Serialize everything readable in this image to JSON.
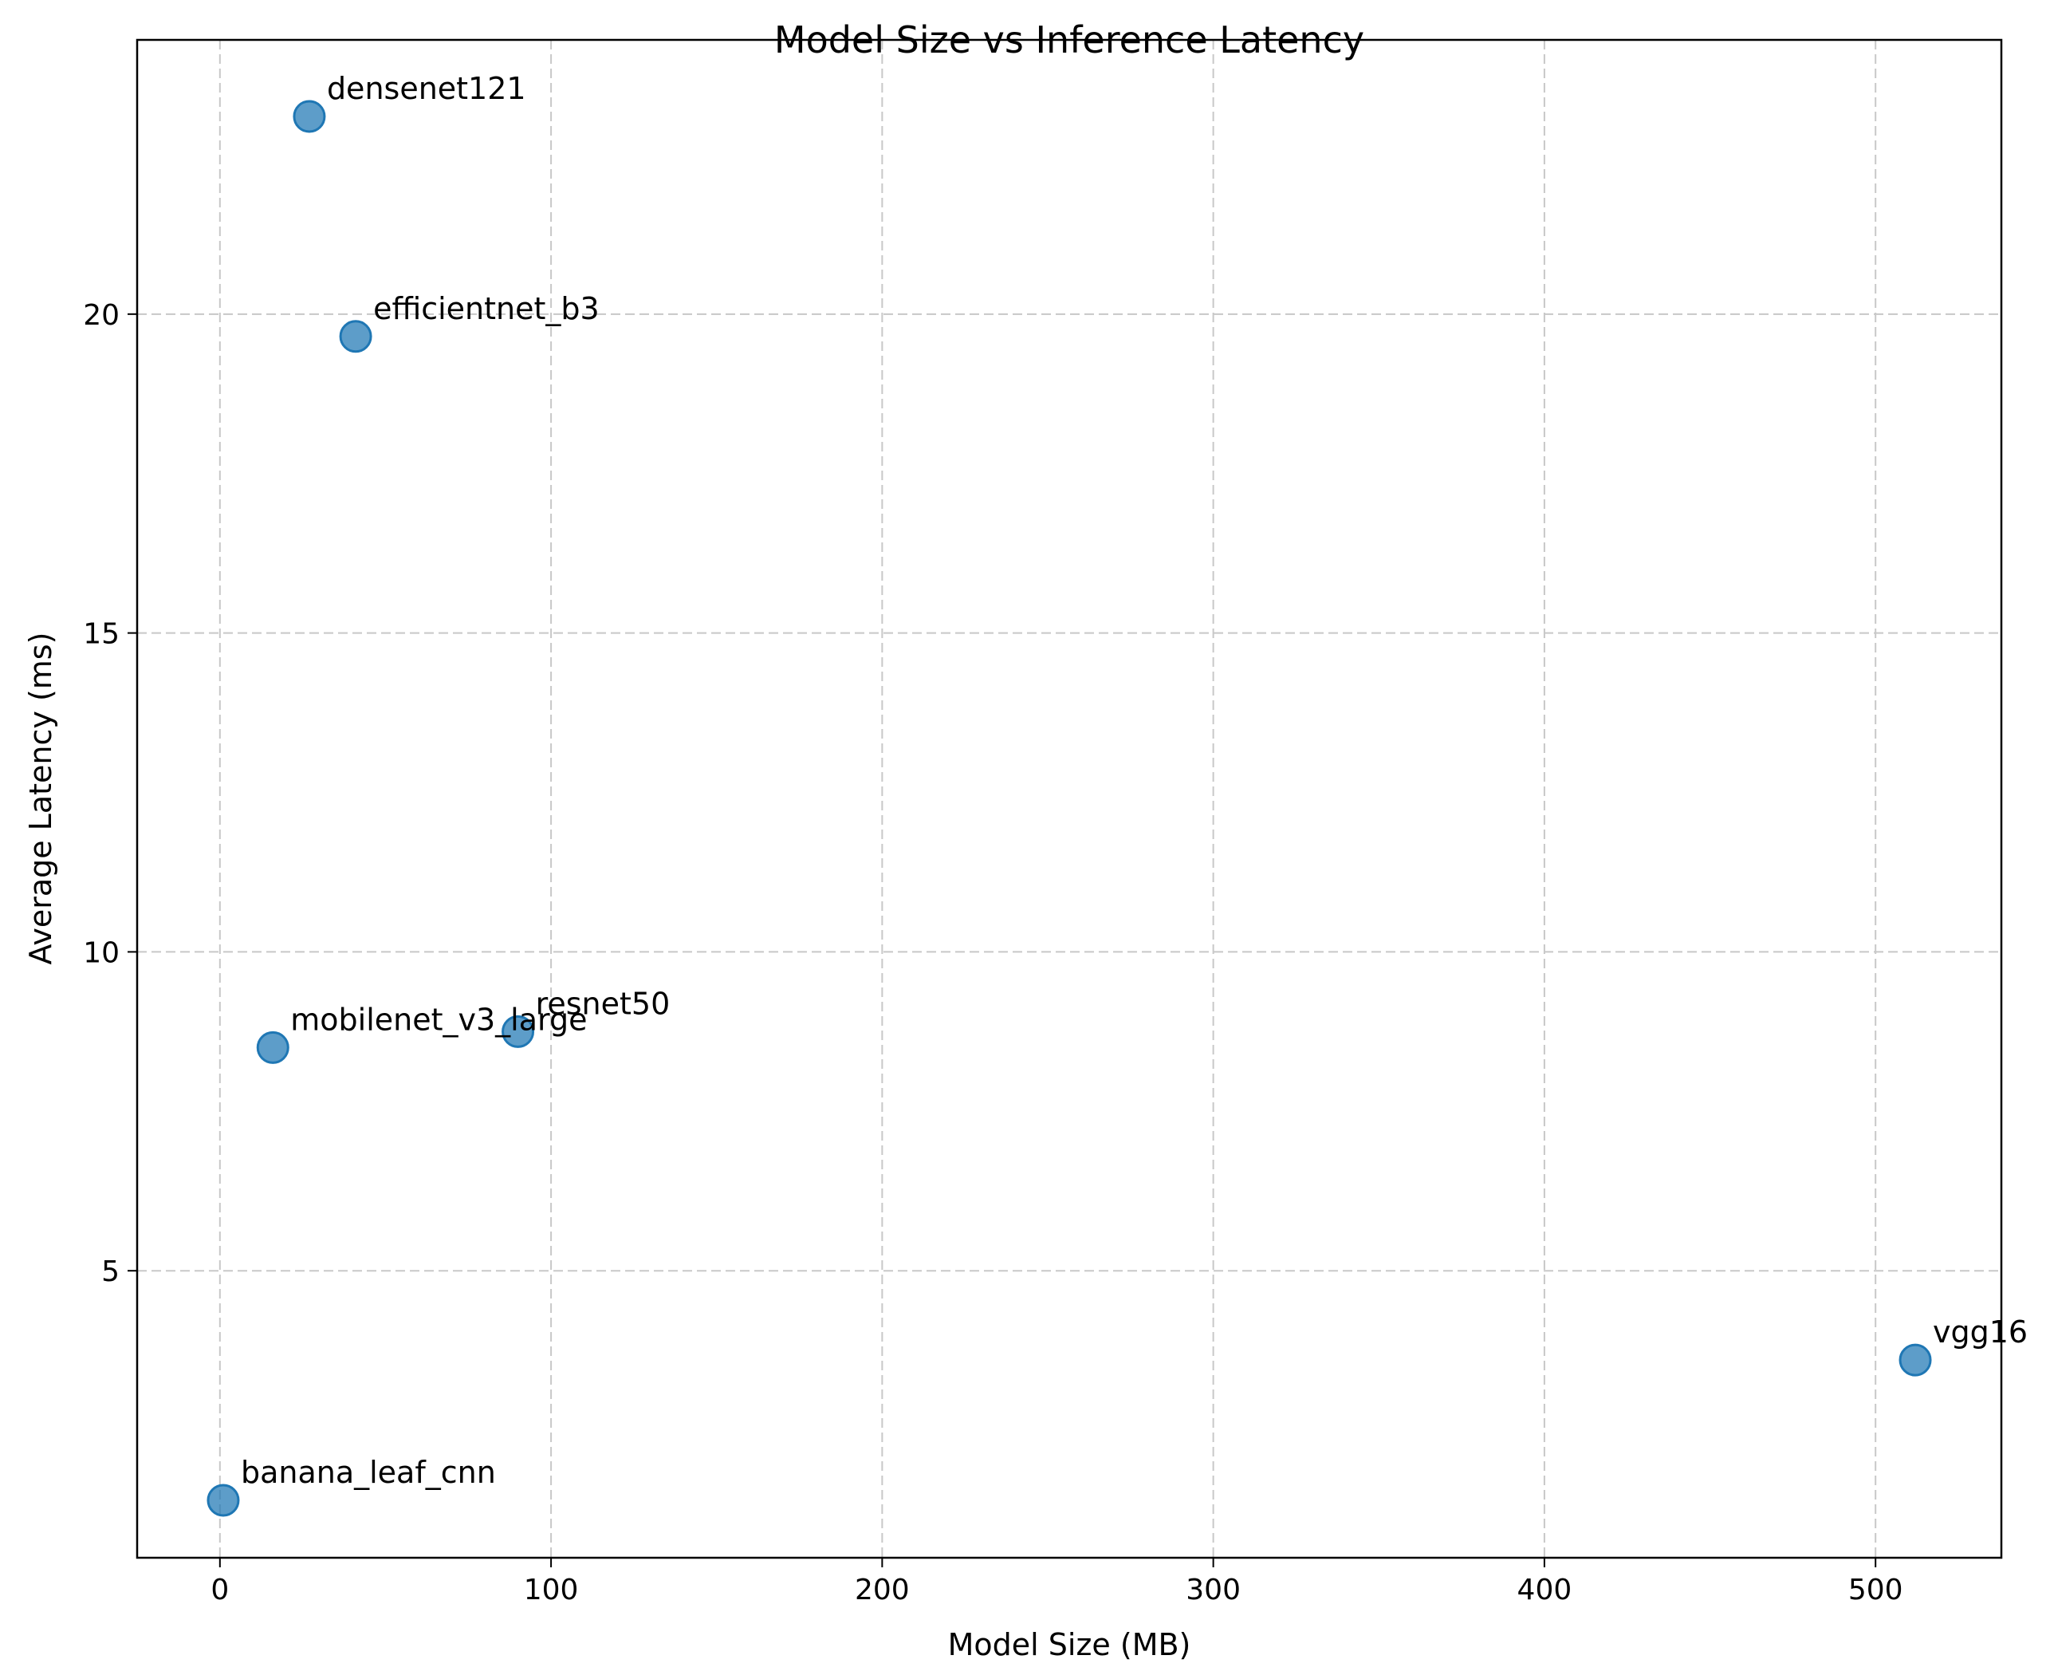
{
  "chart_data": {
    "type": "scatter",
    "title": "Model Size vs Inference Latency",
    "xlabel": "Model Size (MB)",
    "ylabel": "Average Latency (ms)",
    "xlim": [
      -25,
      538
    ],
    "ylim": [
      0.5,
      24.3
    ],
    "xticks": [
      0,
      100,
      200,
      300,
      400,
      500
    ],
    "yticks": [
      5,
      10,
      15,
      20
    ],
    "grid": true,
    "point_color": "#1f77b4",
    "points": [
      {
        "label": "densenet121",
        "x": 27,
        "y": 23.1
      },
      {
        "label": "efficientnet_b3",
        "x": 41,
        "y": 19.65
      },
      {
        "label": "mobilenet_v3_large",
        "x": 16,
        "y": 8.5
      },
      {
        "label": "resnet50",
        "x": 90,
        "y": 8.75
      },
      {
        "label": "vgg16",
        "x": 512,
        "y": 3.6
      },
      {
        "label": "banana_leaf_cnn",
        "x": 1,
        "y": 1.4
      }
    ]
  }
}
